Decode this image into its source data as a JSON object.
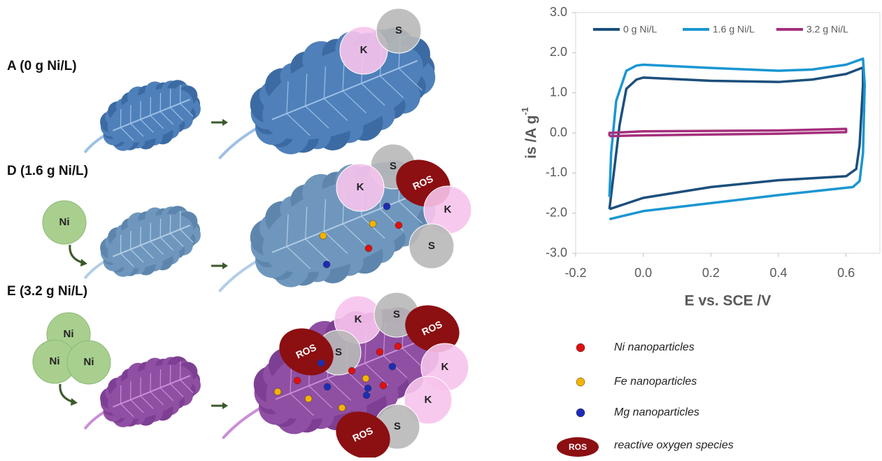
{
  "diagram": {
    "panels": [
      {
        "label": "A (0 g Ni/L)",
        "ni": [],
        "bubbles": [
          "K",
          "S"
        ]
      },
      {
        "label": "D (1.6 g Ni/L)",
        "ni": [
          "Ni"
        ],
        "bubbles": [
          "S",
          "K",
          "ROS",
          "K",
          "S"
        ]
      },
      {
        "label": "E (3.2 g Ni/L)",
        "ni": [
          "Ni",
          "Ni",
          "Ni"
        ],
        "bubbles": [
          "K",
          "S",
          "ROS",
          "S",
          "ROS",
          "K",
          "K",
          "S",
          "ROS"
        ]
      }
    ]
  },
  "chart_data": {
    "type": "line",
    "xlabel": "E vs. SCE /V",
    "ylabel": "is /A g",
    "ylabel_sup": "-1",
    "xlim": [
      -0.2,
      0.7
    ],
    "ylim": [
      -3,
      3
    ],
    "xticks": [
      -0.2,
      {
        "value": 0,
        "label": "0.0"
      },
      0.2,
      0.4,
      0.6
    ],
    "yticks": [
      {
        "value": 3,
        "label": "3.0"
      },
      {
        "value": 2,
        "label": "2.0"
      },
      {
        "value": 1,
        "label": "1.0"
      },
      {
        "value": 0,
        "label": "0.0"
      },
      {
        "value": -1,
        "label": "-1.0"
      },
      {
        "value": -2,
        "label": "-2.0"
      },
      {
        "value": -3,
        "label": "-3.0"
      }
    ],
    "series": [
      {
        "name": "0 g Ni/L",
        "color": "#1c4f7c",
        "x": [
          -0.1,
          -0.09,
          -0.07,
          -0.05,
          -0.02,
          0,
          0.2,
          0.4,
          0.5,
          0.6,
          0.65,
          0.65,
          0.64,
          0.63,
          0.6,
          0.4,
          0.2,
          0,
          -0.1
        ],
        "values": [
          -1.9,
          -1.2,
          0.2,
          1.1,
          1.33,
          1.38,
          1.3,
          1.27,
          1.33,
          1.47,
          1.63,
          1.2,
          -0.3,
          -0.9,
          -1.08,
          -1.18,
          -1.35,
          -1.62,
          -1.9
        ]
      },
      {
        "name": "1.6 g Ni/L",
        "color": "#1a96d2",
        "x": [
          -0.1,
          -0.095,
          -0.08,
          -0.05,
          -0.02,
          0,
          0.2,
          0.4,
          0.5,
          0.6,
          0.65,
          0.655,
          0.65,
          0.64,
          0.62,
          0.4,
          0.2,
          0,
          -0.1
        ],
        "values": [
          -1.6,
          -0.5,
          0.8,
          1.55,
          1.68,
          1.7,
          1.62,
          1.55,
          1.58,
          1.7,
          1.85,
          1.2,
          -0.5,
          -1.2,
          -1.35,
          -1.55,
          -1.75,
          -1.95,
          -2.15
        ]
      },
      {
        "name": "3.2 g Ni/L",
        "color": "#a52f7c",
        "x": [
          -0.1,
          -0.1,
          0,
          0.2,
          0.4,
          0.6,
          0.6,
          0.4,
          0.2,
          0,
          -0.1
        ],
        "values": [
          -0.08,
          0,
          0.04,
          0.05,
          0.06,
          0.1,
          0.02,
          -0.02,
          -0.04,
          -0.06,
          -0.08
        ]
      }
    ]
  },
  "legend": {
    "items": [
      "Ni nanoparticles",
      "Fe nanoparticles",
      "Mg nanoparticles",
      "reactive oxygen species"
    ],
    "ros_icon": "ROS"
  }
}
